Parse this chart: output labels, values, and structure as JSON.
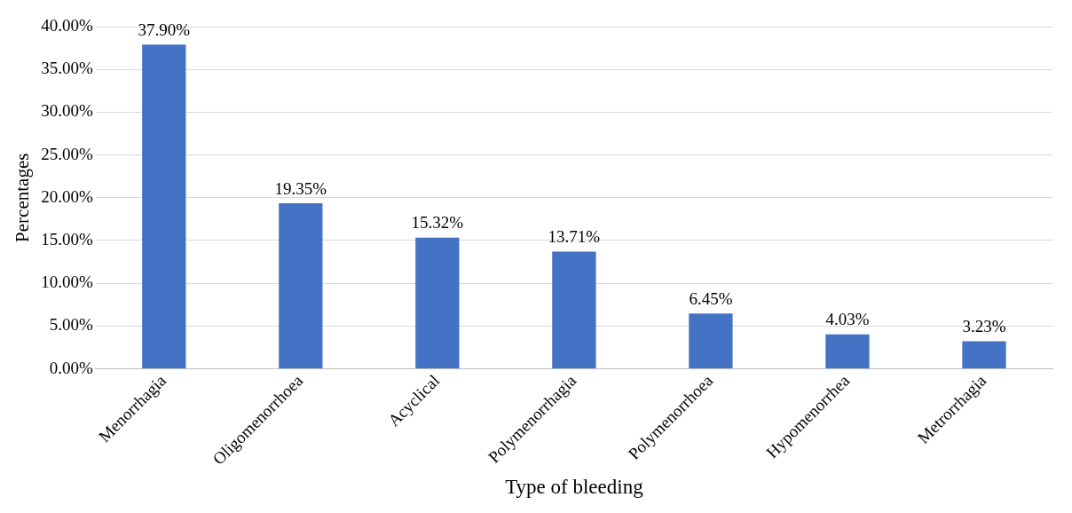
{
  "chart_data": {
    "type": "bar",
    "xlabel": "Type of bleeding",
    "ylabel": "Percentages",
    "categories": [
      "Menorrhagia",
      "Oligomenorrhoea",
      "Acyclical",
      "Polymenorrhagia",
      "Polymenorrhoea",
      "Hypomenorrhea",
      "Metrorrhagia"
    ],
    "values": [
      37.9,
      19.35,
      15.32,
      13.71,
      6.45,
      4.03,
      3.23
    ],
    "value_labels": [
      "37.90%",
      "19.35%",
      "15.32%",
      "13.71%",
      "6.45%",
      "4.03%",
      "3.23%"
    ],
    "color": "#4472c4",
    "ylim": [
      0,
      40
    ],
    "yticks": [
      {
        "value": 0,
        "label": "0.00%"
      },
      {
        "value": 5,
        "label": "5.00%"
      },
      {
        "value": 10,
        "label": "10.00%"
      },
      {
        "value": 15,
        "label": "15.00%"
      },
      {
        "value": 20,
        "label": "20.00%"
      },
      {
        "value": 25,
        "label": "25.00%"
      },
      {
        "value": 30,
        "label": "30.00%"
      },
      {
        "value": 35,
        "label": "35.00%"
      },
      {
        "value": 40,
        "label": "40.00%"
      }
    ],
    "grid": "y"
  }
}
